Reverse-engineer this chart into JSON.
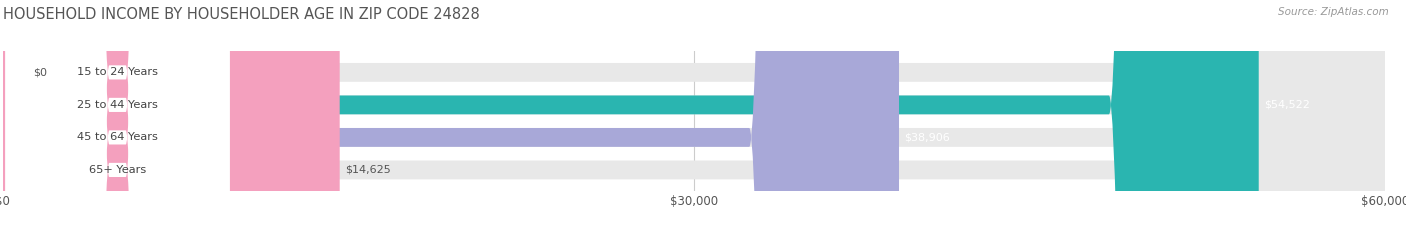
{
  "title": "HOUSEHOLD INCOME BY HOUSEHOLDER AGE IN ZIP CODE 24828",
  "source": "Source: ZipAtlas.com",
  "categories": [
    "15 to 24 Years",
    "25 to 44 Years",
    "45 to 64 Years",
    "65+ Years"
  ],
  "values": [
    0,
    54522,
    38906,
    14625
  ],
  "bar_colors": [
    "#c9a8d4",
    "#2ab5b0",
    "#a8a8d8",
    "#f4a0be"
  ],
  "value_label_colors": [
    "#555555",
    "#ffffff",
    "#ffffff",
    "#555555"
  ],
  "bar_bg_color": "#e8e8e8",
  "xlim": [
    0,
    60000
  ],
  "xtick_labels": [
    "$0",
    "$30,000",
    "$60,000"
  ],
  "xtick_values": [
    0,
    30000,
    60000
  ],
  "value_labels": [
    "$0",
    "$54,522",
    "$38,906",
    "$14,625"
  ],
  "title_color": "#555555",
  "title_fontsize": 10.5,
  "source_fontsize": 7.5,
  "bar_height": 0.58,
  "figsize": [
    14.06,
    2.33
  ],
  "dpi": 100
}
